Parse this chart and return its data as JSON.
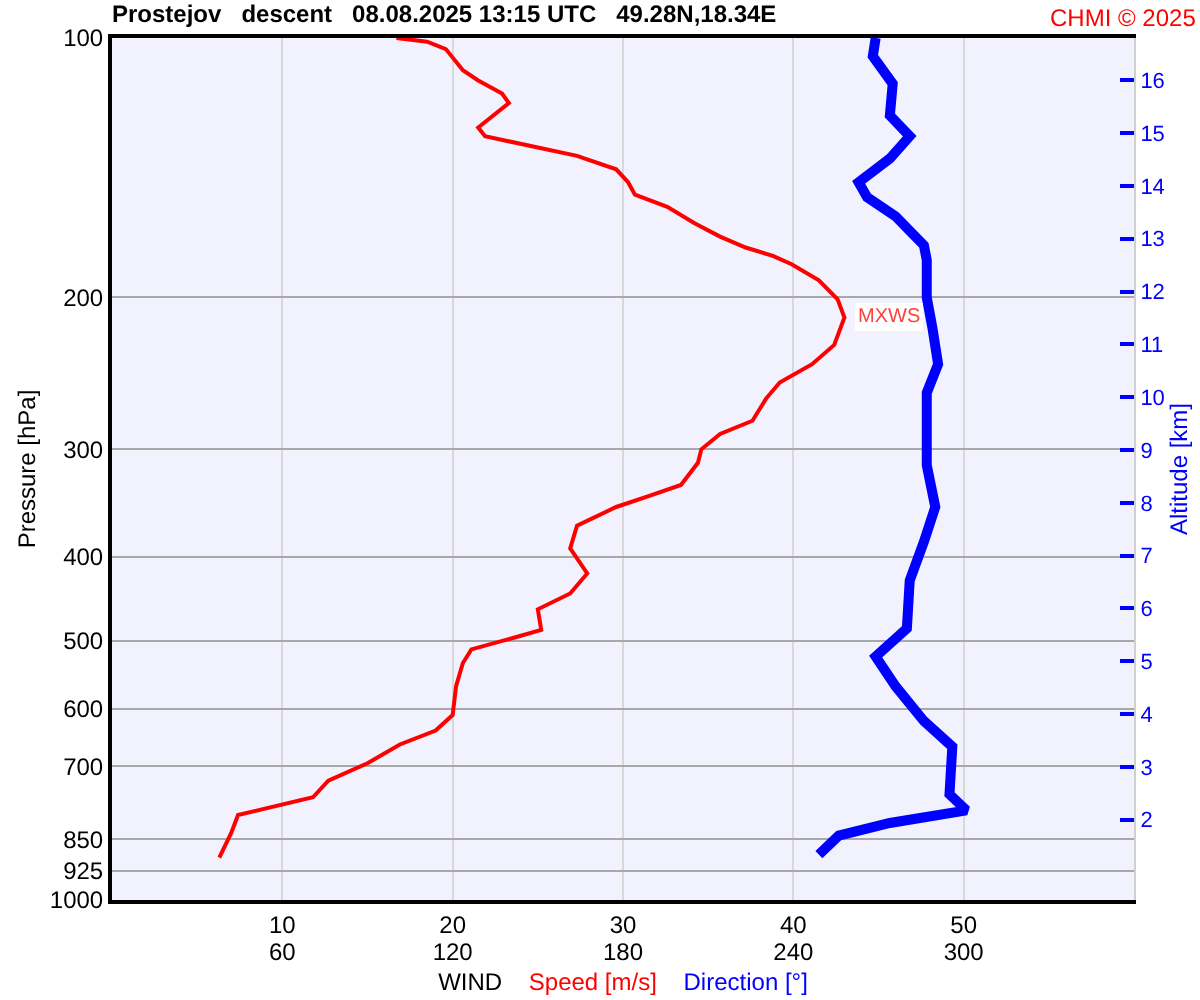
{
  "chart_data": {
    "type": "line",
    "title": "Prostejov   descent   08.08.2025 13:15 UTC   49.28N,18.34E",
    "xlabel": "WIND",
    "ylabel": "Pressure [hPa]",
    "y2label": "Altitude [km]",
    "annotations": [
      "CHMI © 2025",
      {
        "text": "MXWS",
        "x": 43,
        "y": 211
      }
    ],
    "xlim": [
      0,
      60
    ],
    "xticks": [
      10,
      20,
      30,
      40,
      50
    ],
    "x2lim": [
      0,
      360
    ],
    "x2ticks": [
      60,
      120,
      180,
      240,
      300
    ],
    "ylim": [
      1000,
      100
    ],
    "yticks": [
      100,
      200,
      300,
      400,
      500,
      600,
      700,
      850,
      925,
      1000
    ],
    "y2lim": [
      0.48,
      16.8
    ],
    "y2ticks": [
      2,
      3,
      4,
      5,
      6,
      7,
      8,
      9,
      10,
      11,
      12,
      13,
      14,
      15,
      16
    ],
    "log": "y",
    "grid": true,
    "legend": false,
    "marker": "none",
    "line_style": "solid",
    "series": [
      {
        "name": "Speed [m/s]",
        "color": "#ff0000",
        "x": [
          16.7,
          18.5,
          19.6,
          20.6,
          21.5,
          22.9,
          23.3,
          21.5,
          21.9,
          25.0,
          27.3,
          29.6,
          30.3,
          30.7,
          32.6,
          34.2,
          35.7,
          37.2,
          38.8,
          39.9,
          41.5,
          42.6,
          43.0,
          42.4,
          41.1,
          39.2,
          38.4,
          37.6,
          35.7,
          34.6,
          34.4,
          33.4,
          31.5,
          29.6,
          27.3,
          26.9,
          27.9,
          26.9,
          25.0,
          25.2,
          23.8,
          21.1,
          20.6,
          20.2,
          20.0,
          19.0,
          16.9,
          15.0,
          12.7,
          11.8,
          7.4,
          7.0,
          6.3
        ],
        "values": [
          100,
          101,
          103,
          109,
          112,
          116,
          119,
          127,
          130,
          134,
          137,
          142,
          147,
          152,
          157,
          164,
          170,
          175,
          179,
          183,
          191,
          201,
          211,
          227,
          239,
          251,
          262,
          278,
          288,
          300,
          311,
          330,
          340,
          350,
          368,
          391,
          418,
          441,
          460,
          486,
          495,
          512,
          531,
          565,
          610,
          636,
          660,
          694,
          727,
          760,
          797,
          836,
          893
        ]
      },
      {
        "name": "Direction [°]",
        "color": "#0000ff",
        "axis": "x2",
        "x": [
          269,
          268,
          275,
          274,
          281,
          274,
          263,
          266,
          276,
          286,
          287,
          287,
          289,
          291,
          287,
          287,
          287,
          290,
          286,
          281,
          280,
          269,
          276,
          286,
          296,
          295,
          301,
          274,
          256,
          249
        ],
        "values": [
          100,
          105,
          113,
          123,
          130,
          138,
          147,
          153,
          161,
          174,
          181,
          200,
          217,
          239,
          258,
          286,
          313,
          350,
          384,
          426,
          484,
          522,
          565,
          620,
          664,
          754,
          787,
          814,
          842,
          886
        ]
      }
    ]
  }
}
